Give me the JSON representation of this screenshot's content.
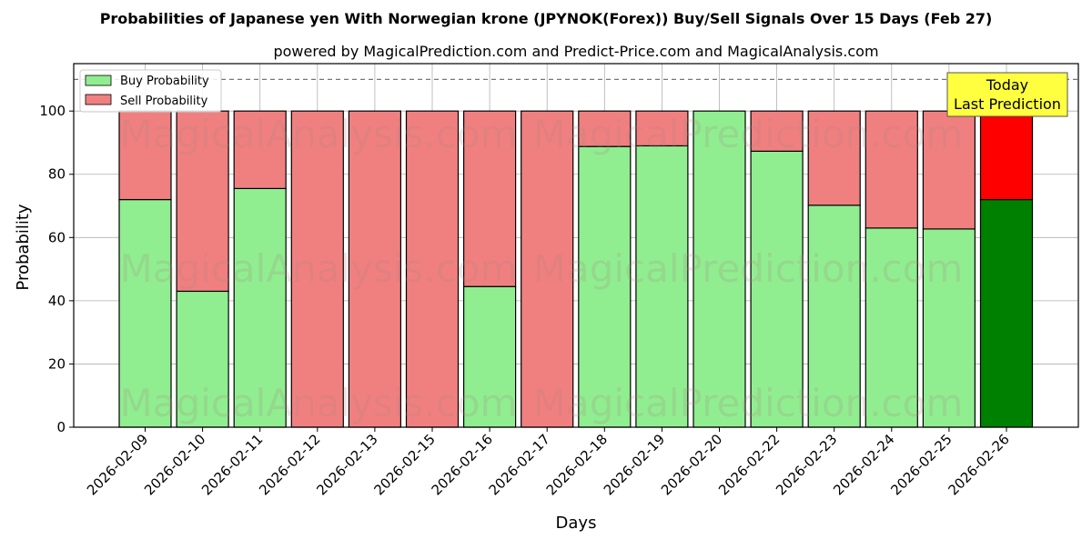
{
  "chart_data": {
    "type": "bar",
    "stacked": true,
    "title": "Probabilities of Japanese yen With Norwegian krone (JPYNOK(Forex)) Buy/Sell Signals Over 15 Days (Feb 27)",
    "subtitle": "powered by MagicalPrediction.com and Predict-Price.com and MagicalAnalysis.com",
    "xlabel": "Days",
    "ylabel": "Probability",
    "ylim": [
      0,
      115
    ],
    "yticks": [
      0,
      20,
      40,
      60,
      80,
      100
    ],
    "grid": true,
    "legend_position": "top-left",
    "reference_line": 110,
    "categories": [
      "2026-02-09",
      "2026-02-10",
      "2026-02-11",
      "2026-02-12",
      "2026-02-13",
      "2026-02-15",
      "2026-02-16",
      "2026-02-17",
      "2026-02-18",
      "2026-02-19",
      "2026-02-20",
      "2026-02-22",
      "2026-02-23",
      "2026-02-24",
      "2026-02-25",
      "2026-02-26"
    ],
    "series": [
      {
        "name": "Buy Probability",
        "color": "#90ee90",
        "highlight_color": "#008000",
        "values": [
          72,
          43,
          75.5,
          0,
          0,
          0,
          44.5,
          0,
          88.8,
          89,
          100,
          87.3,
          70.2,
          63,
          62.7,
          72
        ]
      },
      {
        "name": "Sell Probability",
        "color": "#f08080",
        "highlight_color": "#ff0000",
        "values": [
          28,
          57,
          24.5,
          100,
          100,
          100,
          55.5,
          100,
          11.2,
          11,
          0,
          12.7,
          29.8,
          37,
          37.3,
          28
        ]
      }
    ],
    "highlight_index": 15,
    "annotation": {
      "line1": "Today",
      "line2": "Last Prediction",
      "color": "#ffff40"
    },
    "watermarks": [
      "MagicalAnalysis.com",
      "MagicalPrediction.com"
    ]
  }
}
